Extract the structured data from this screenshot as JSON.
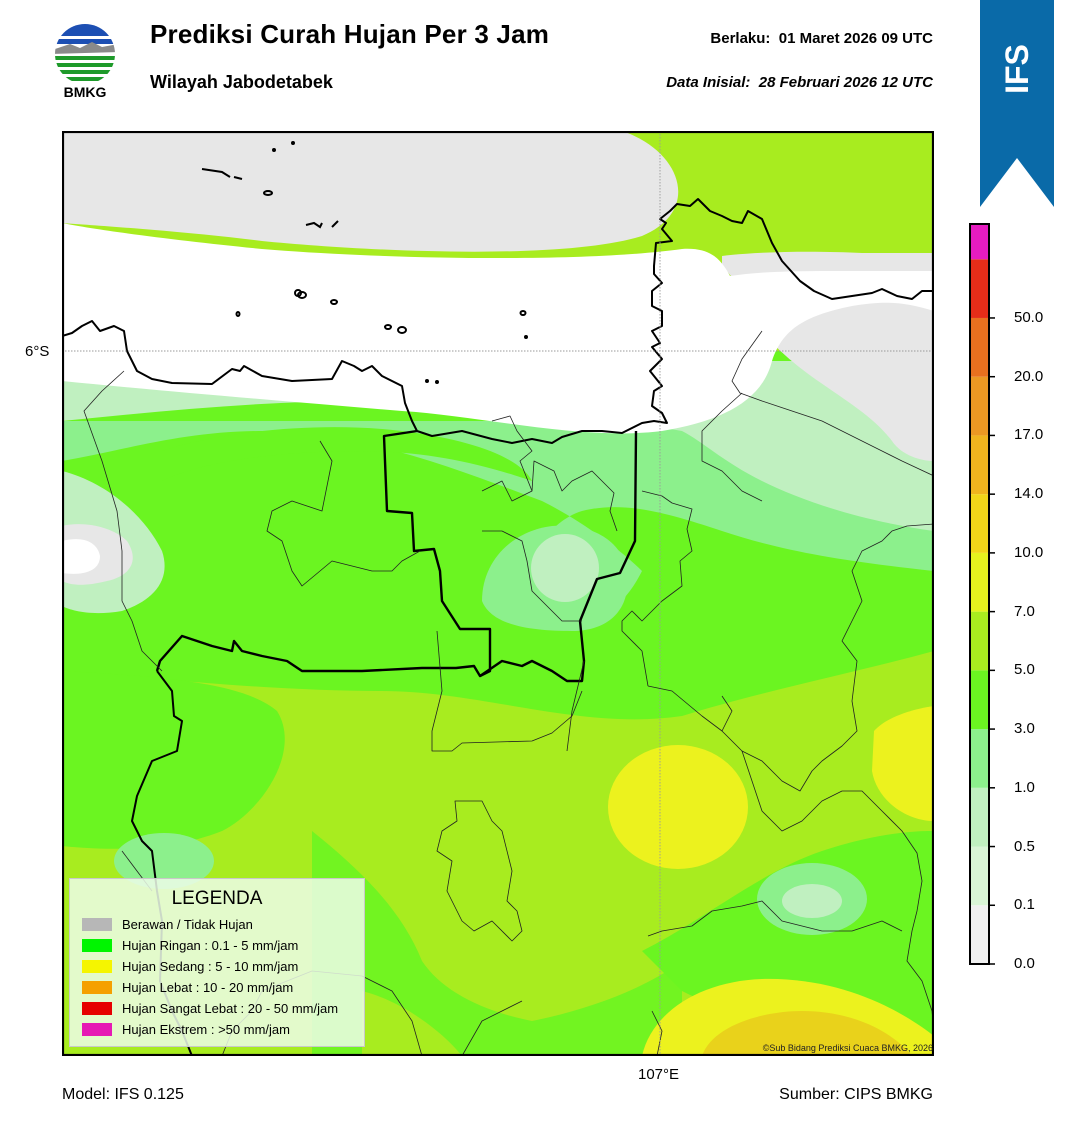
{
  "header": {
    "title": "Prediksi Curah Hujan Per 3 Jam",
    "subtitle": "Wilayah Jabodetabek",
    "valid": "Berlaku:  01 Maret 2026 09 UTC",
    "initial": "Data Inisial:  28 Februari 2026 12 UTC"
  },
  "logo": {
    "text": "BMKG",
    "icon": "bmkg-logo"
  },
  "ribbon": {
    "text": "IFS",
    "color": "#0a6aa8"
  },
  "map": {
    "lat_label": "6°S",
    "lon_label": "107°E",
    "copyright": "©Sub Bidang Prediksi Cuaca BMKG, 2026"
  },
  "legend": {
    "title": "LEGENDA",
    "items": [
      {
        "label": "Berawan / Tidak Hujan",
        "color": "#b7b7b7"
      },
      {
        "label": "Hujan Ringan : 0.1 - 5 mm/jam",
        "color": "#00f500"
      },
      {
        "label": "Hujan Sedang : 5 - 10 mm/jam",
        "color": "#f5f500"
      },
      {
        "label": "Hujan Lebat : 10 - 20 mm/jam",
        "color": "#f5a000"
      },
      {
        "label": "Hujan Sangat Lebat : 20 - 50 mm/jam",
        "color": "#e60000"
      },
      {
        "label": "Hujan Ekstrem : >50 mm/jam",
        "color": "#e619b4"
      }
    ]
  },
  "colorbar": {
    "ticks": [
      "50.0",
      "20.0",
      "17.0",
      "14.0",
      "10.0",
      "7.0",
      "5.0",
      "3.0",
      "1.0",
      "0.5",
      "0.1",
      "0.0"
    ],
    "colors_bottom_to_top": [
      "#f0f0f0",
      "#d9f5d6",
      "#c0f0c0",
      "#8cf08c",
      "#6bf521",
      "#a9ec1f",
      "#e6f21e",
      "#f2d619",
      "#f0b41e",
      "#ec9823",
      "#e9701f",
      "#e62d19",
      "#e61cc0"
    ]
  },
  "footer": {
    "model": "Model: IFS 0.125",
    "source": "Sumber: CIPS BMKG"
  }
}
